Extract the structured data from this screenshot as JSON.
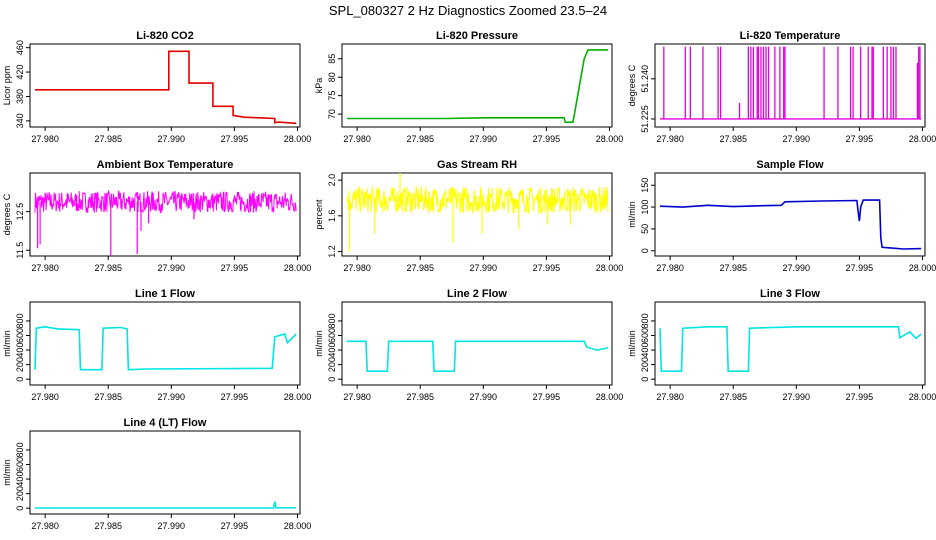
{
  "figure_title": "SPL_080327  2 Hz Diagnostics Zoomed 23.5–24",
  "chart_data": [
    {
      "type": "line",
      "title": "Li-820 CO2",
      "ylabel": "Licor ppm",
      "color": "#e00000",
      "xlim": [
        27.9788,
        28.0002
      ],
      "ylim": [
        330,
        466
      ],
      "xticks": [
        "27.980",
        "27.985",
        "27.990",
        "27.995",
        "28.000"
      ],
      "xtick_values": [
        27.98,
        27.985,
        27.99,
        27.995,
        28.0
      ],
      "yticks": [
        "340",
        "380",
        "420",
        "460"
      ],
      "ytick_values": [
        340,
        380,
        420,
        460
      ],
      "series": [
        {
          "name": "CO2",
          "points": [
            [
              27.9792,
              391
            ],
            [
              27.9898,
              391
            ],
            [
              27.9898,
              454
            ],
            [
              27.9914,
              454
            ],
            [
              27.9914,
              402
            ],
            [
              27.9933,
              402
            ],
            [
              27.9933,
              364
            ],
            [
              27.9949,
              364
            ],
            [
              27.9949,
              349
            ],
            [
              27.9958,
              346
            ],
            [
              27.9982,
              344
            ],
            [
              27.9982,
              337
            ],
            [
              27.9985,
              338
            ],
            [
              27.9999,
              336
            ]
          ]
        }
      ]
    },
    {
      "type": "line",
      "title": "Li-820 Pressure",
      "ylabel": "kPa",
      "color": "#00b000",
      "xlim": [
        27.9788,
        28.0002
      ],
      "ylim": [
        66.5,
        89
      ],
      "xticks": [
        "27.980",
        "27.985",
        "27.990",
        "27.995",
        "28.000"
      ],
      "xtick_values": [
        27.98,
        27.985,
        27.99,
        27.995,
        28.0
      ],
      "yticks": [
        "70",
        "75",
        "80",
        "85"
      ],
      "ytick_values": [
        70,
        75,
        80,
        85
      ],
      "series": [
        {
          "name": "Pressure",
          "points": [
            [
              27.9792,
              68.8
            ],
            [
              27.987,
              68.8
            ],
            [
              27.99,
              69.0
            ],
            [
              27.994,
              69.0
            ],
            [
              27.9964,
              69.0
            ],
            [
              27.9965,
              67.8
            ],
            [
              27.9971,
              67.8
            ],
            [
              27.9972,
              69.5
            ],
            [
              27.998,
              85.0
            ],
            [
              27.9983,
              87.4
            ],
            [
              27.9999,
              87.4
            ]
          ]
        }
      ]
    },
    {
      "type": "line",
      "title": "Li-820 Temperature",
      "ylabel": "degrees C",
      "color": "#e000e0",
      "xlim": [
        27.9788,
        28.0002
      ],
      "ylim": [
        51.222,
        51.253
      ],
      "xticks": [
        "27.980",
        "27.985",
        "27.990",
        "27.995",
        "28.000"
      ],
      "xtick_values": [
        27.98,
        27.985,
        27.99,
        27.995,
        28.0
      ],
      "yticks": [
        "51.225",
        "51.240"
      ],
      "ytick_values": [
        51.225,
        51.24
      ],
      "series": [
        {
          "name": "Temperature",
          "baseline": 51.225,
          "spike_to": 51.252,
          "spikes": [
            27.9795,
            27.9812,
            27.9816,
            27.9826,
            27.9838,
            27.984,
            27.9862,
            27.9864,
            27.9866,
            27.9869,
            27.987,
            27.9872,
            27.9874,
            27.9876,
            27.9878,
            27.9883,
            27.9887,
            27.989,
            27.9891,
            27.9922,
            27.9933,
            27.9943,
            27.9945,
            27.9951,
            27.9957,
            27.996,
            27.9961,
            27.9969,
            27.9972,
            27.9975,
            27.9977,
            27.9979,
            27.9997,
            27.9998
          ],
          "partial": [
            {
              "x": 27.9855,
              "to": 51.231
            },
            {
              "x": 27.9996,
              "to": 51.246
            }
          ]
        }
      ]
    },
    {
      "type": "noise",
      "title": "Ambient Box Temperature",
      "ylabel": "degrees C",
      "color": "#ff00ff",
      "xlim": [
        27.9788,
        28.0002
      ],
      "ylim": [
        11.35,
        13.5
      ],
      "xticks": [
        "27.980",
        "27.985",
        "27.990",
        "27.995",
        "28.000"
      ],
      "xtick_values": [
        27.98,
        27.985,
        27.99,
        27.995,
        28.0
      ],
      "yticks": [
        "11.5",
        "12.5"
      ],
      "ytick_values": [
        11.5,
        12.5
      ],
      "series": [
        {
          "name": "Box temp",
          "center": 12.75,
          "amplitude": 0.28,
          "dips": [
            [
              27.9794,
              11.55
            ],
            [
              27.9796,
              11.65
            ],
            [
              27.9852,
              11.35
            ],
            [
              27.9873,
              11.4
            ],
            [
              27.9876,
              12.0
            ],
            [
              27.9882,
              12.2
            ],
            [
              27.9918,
              12.3
            ]
          ]
        }
      ]
    },
    {
      "type": "noise",
      "title": "Gas Stream RH",
      "ylabel": "percent",
      "color": "#ffff00",
      "xlim": [
        27.9788,
        28.0002
      ],
      "ylim": [
        1.15,
        2.08
      ],
      "xticks": [
        "27.980",
        "27.985",
        "27.990",
        "27.995",
        "28.000"
      ],
      "xtick_values": [
        27.98,
        27.985,
        27.99,
        27.995,
        28.0
      ],
      "yticks": [
        "1.2",
        "1.6",
        "2.0"
      ],
      "ytick_values": [
        1.2,
        1.6,
        2.0
      ],
      "series": [
        {
          "name": "RH",
          "center": 1.78,
          "amplitude": 0.15,
          "dips": [
            [
              27.9794,
              1.2
            ],
            [
              27.9814,
              1.4
            ],
            [
              27.9834,
              2.08
            ],
            [
              27.9876,
              1.3
            ],
            [
              27.9899,
              1.4
            ],
            [
              27.9928,
              1.45
            ],
            [
              27.9951,
              1.5
            ],
            [
              27.9969,
              1.5
            ]
          ]
        }
      ]
    },
    {
      "type": "line",
      "title": "Sample Flow",
      "ylabel": "ml/min",
      "color": "#0000cc",
      "xlim": [
        27.9788,
        28.0002
      ],
      "ylim": [
        -12,
        178
      ],
      "xticks": [
        "27.980",
        "27.985",
        "27.990",
        "27.995",
        "28.000"
      ],
      "xtick_values": [
        27.98,
        27.985,
        27.99,
        27.995,
        28.0
      ],
      "yticks": [
        "0",
        "50",
        "100",
        "150"
      ],
      "ytick_values": [
        0,
        50,
        100,
        150
      ],
      "series": [
        {
          "name": "Sample flow",
          "points": [
            [
              27.9792,
              102
            ],
            [
              27.981,
              100
            ],
            [
              27.983,
              104
            ],
            [
              27.985,
              101
            ],
            [
              27.987,
              103
            ],
            [
              27.9888,
              104
            ],
            [
              27.9891,
              112
            ],
            [
              27.992,
              114
            ],
            [
              27.9948,
              115
            ],
            [
              27.9949,
              90
            ],
            [
              27.995,
              68
            ],
            [
              27.9951,
              100
            ],
            [
              27.9953,
              116
            ],
            [
              27.9966,
              116
            ],
            [
              27.9967,
              30
            ],
            [
              27.9968,
              8
            ],
            [
              27.9985,
              4
            ],
            [
              27.9999,
              5
            ]
          ]
        }
      ]
    },
    {
      "type": "line",
      "title": "Line 1 Flow",
      "ylabel": "ml/min",
      "color": "#00e5e5",
      "xlim": [
        27.9788,
        28.0002
      ],
      "ylim": [
        -80,
        1060
      ],
      "xticks": [
        "27.980",
        "27.985",
        "27.990",
        "27.995",
        "28.000"
      ],
      "xtick_values": [
        27.98,
        27.985,
        27.99,
        27.995,
        28.0
      ],
      "yticks": [
        "0",
        "200",
        "400",
        "600",
        "800"
      ],
      "ytick_values": [
        0,
        200,
        400,
        600,
        800
      ],
      "series": [
        {
          "name": "Line 1",
          "points": [
            [
              27.9792,
              130
            ],
            [
              27.9793,
              700
            ],
            [
              27.98,
              720
            ],
            [
              27.981,
              690
            ],
            [
              27.9827,
              680
            ],
            [
              27.9828,
              130
            ],
            [
              27.9845,
              130
            ],
            [
              27.9846,
              700
            ],
            [
              27.986,
              710
            ],
            [
              27.9865,
              690
            ],
            [
              27.9866,
              130
            ],
            [
              27.988,
              140
            ],
            [
              27.998,
              150
            ],
            [
              27.9982,
              580
            ],
            [
              27.999,
              620
            ],
            [
              27.9992,
              500
            ],
            [
              27.9999,
              620
            ]
          ]
        }
      ]
    },
    {
      "type": "line",
      "title": "Line 2 Flow",
      "ylabel": "ml/min",
      "color": "#00e5e5",
      "xlim": [
        27.9788,
        28.0002
      ],
      "ylim": [
        -80,
        1060
      ],
      "xticks": [
        "27.980",
        "27.985",
        "27.990",
        "27.995",
        "28.000"
      ],
      "xtick_values": [
        27.98,
        27.985,
        27.99,
        27.995,
        28.0
      ],
      "yticks": [
        "0",
        "200",
        "400",
        "600",
        "800"
      ],
      "ytick_values": [
        0,
        200,
        400,
        600,
        800
      ],
      "series": [
        {
          "name": "Line 2",
          "points": [
            [
              27.9792,
              520
            ],
            [
              27.9807,
              520
            ],
            [
              27.9808,
              110
            ],
            [
              27.9824,
              110
            ],
            [
              27.9825,
              520
            ],
            [
              27.986,
              520
            ],
            [
              27.9861,
              110
            ],
            [
              27.9877,
              110
            ],
            [
              27.9878,
              520
            ],
            [
              27.998,
              520
            ],
            [
              27.9982,
              440
            ],
            [
              27.999,
              400
            ],
            [
              27.9999,
              430
            ]
          ]
        }
      ]
    },
    {
      "type": "line",
      "title": "Line 3 Flow",
      "ylabel": "ml/min",
      "color": "#00e5e5",
      "xlim": [
        27.9788,
        28.0002
      ],
      "ylim": [
        -80,
        1060
      ],
      "xticks": [
        "27.980",
        "27.985",
        "27.990",
        "27.995",
        "28.000"
      ],
      "xtick_values": [
        27.98,
        27.985,
        27.99,
        27.995,
        28.0
      ],
      "yticks": [
        "0",
        "200",
        "400",
        "600",
        "800"
      ],
      "ytick_values": [
        0,
        200,
        400,
        600,
        800
      ],
      "series": [
        {
          "name": "Line 3",
          "points": [
            [
              27.9792,
              700
            ],
            [
              27.9793,
              110
            ],
            [
              27.9809,
              110
            ],
            [
              27.981,
              700
            ],
            [
              27.983,
              720
            ],
            [
              27.9845,
              720
            ],
            [
              27.9846,
              110
            ],
            [
              27.9862,
              110
            ],
            [
              27.9863,
              700
            ],
            [
              27.99,
              720
            ],
            [
              27.996,
              720
            ],
            [
              27.9981,
              720
            ],
            [
              27.9982,
              570
            ],
            [
              27.999,
              650
            ],
            [
              27.9995,
              560
            ],
            [
              27.9999,
              620
            ]
          ]
        }
      ]
    },
    {
      "type": "line",
      "title": "Line 4 (LT) Flow",
      "ylabel": "ml/min",
      "color": "#00e5e5",
      "xlim": [
        27.9788,
        28.0002
      ],
      "ylim": [
        -80,
        1060
      ],
      "xticks": [
        "27.980",
        "27.985",
        "27.990",
        "27.995",
        "28.000"
      ],
      "xtick_values": [
        27.98,
        27.985,
        27.99,
        27.995,
        28.0
      ],
      "yticks": [
        "0",
        "200",
        "400",
        "600",
        "800"
      ],
      "ytick_values": [
        0,
        200,
        400,
        600,
        800
      ],
      "series": [
        {
          "name": "Line 4",
          "points": [
            [
              27.9792,
              3
            ],
            [
              27.9981,
              3
            ],
            [
              27.9982,
              90
            ],
            [
              27.9983,
              5
            ],
            [
              27.9999,
              5
            ]
          ]
        }
      ]
    }
  ]
}
